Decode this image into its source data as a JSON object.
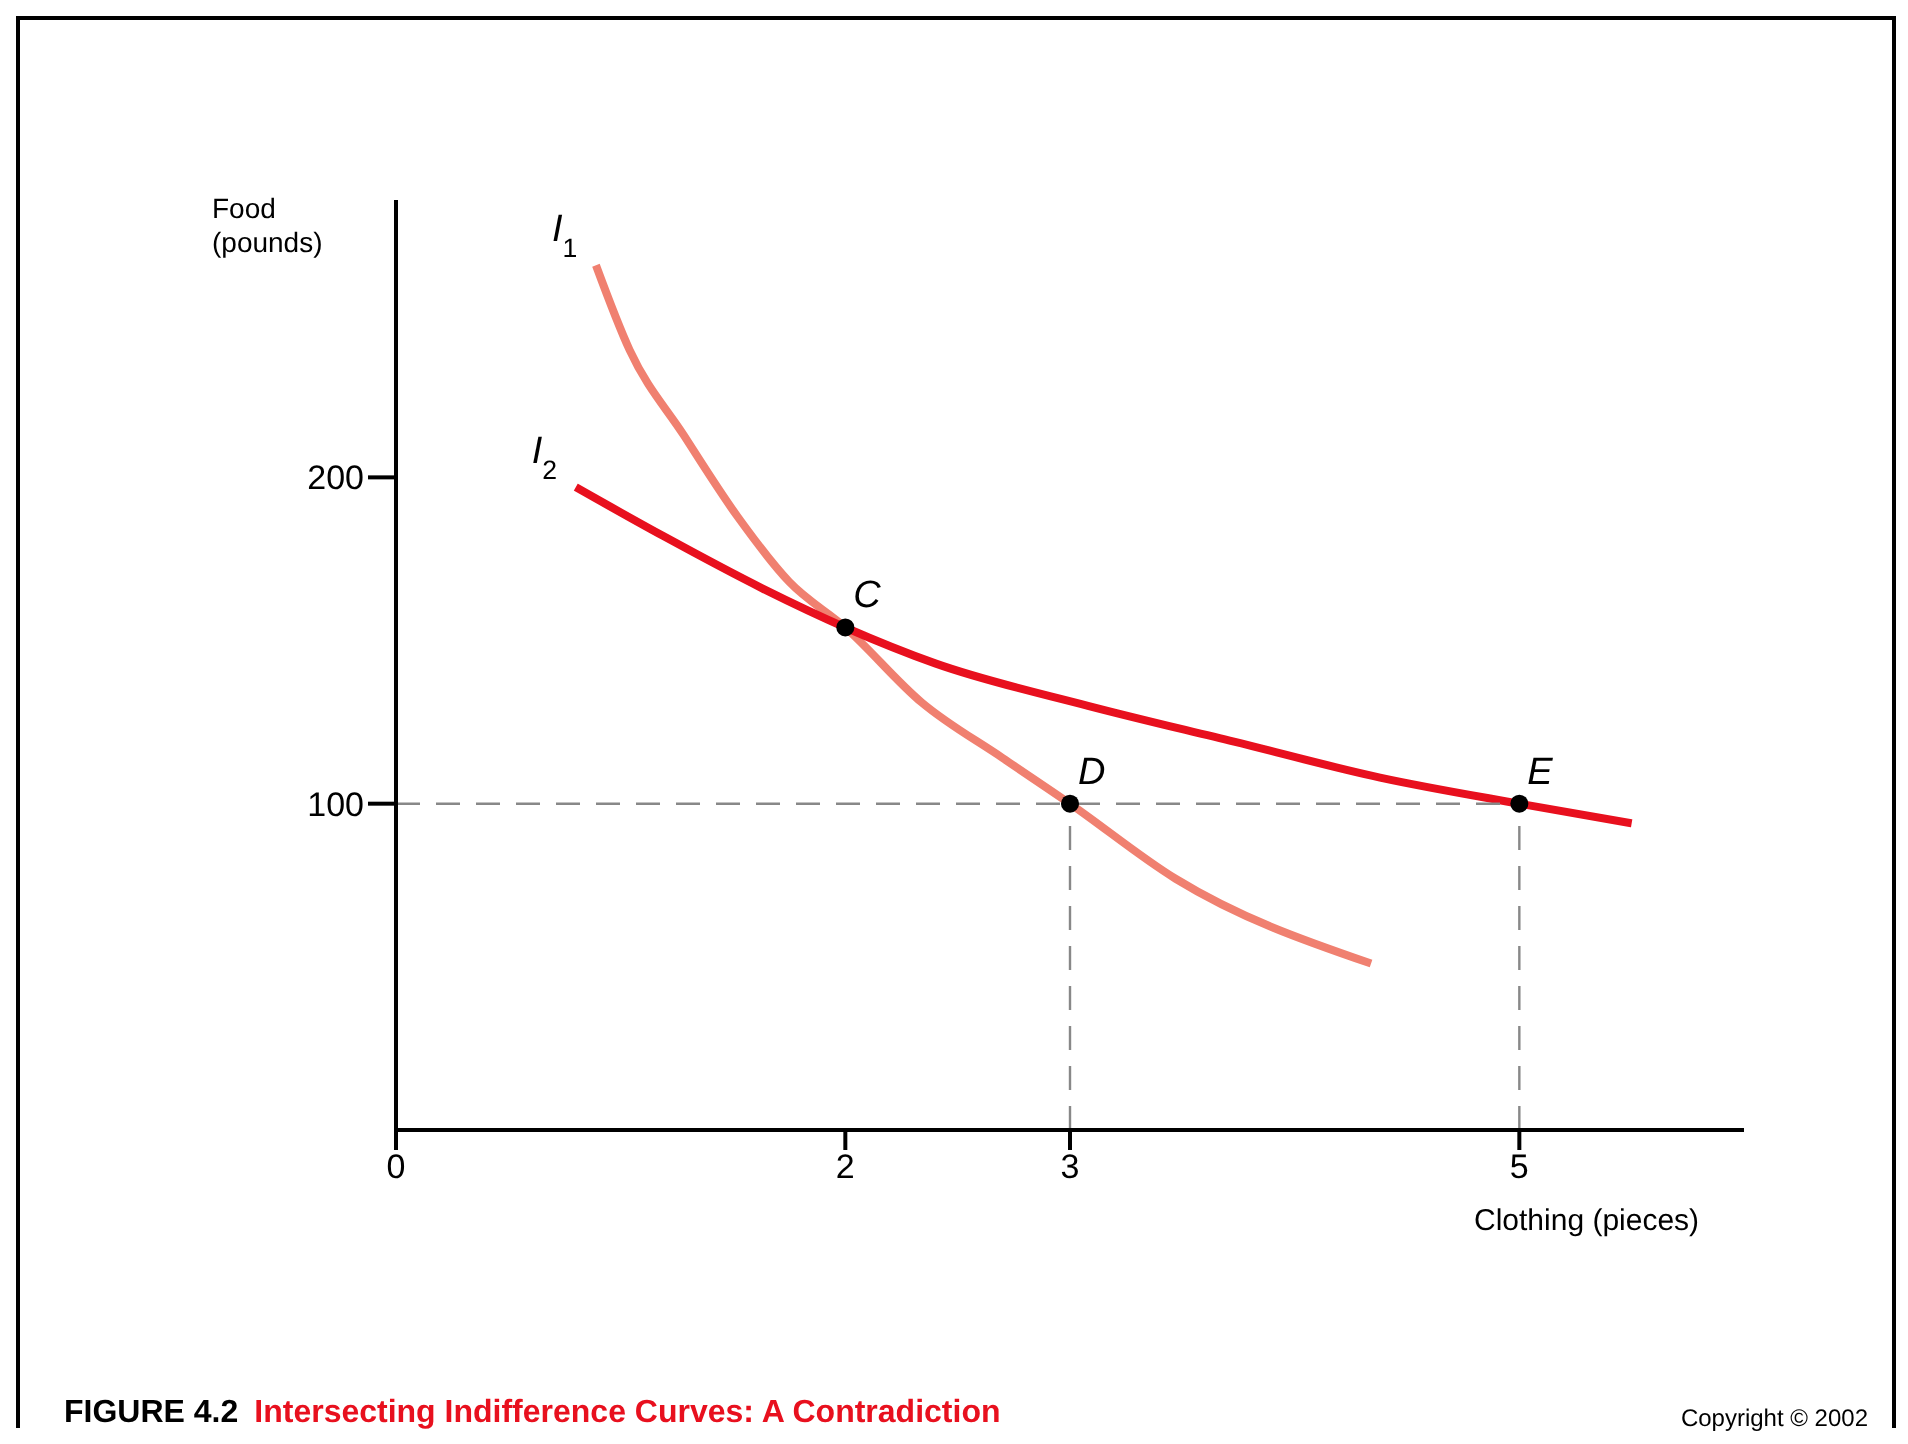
{
  "chart_data": {
    "type": "line",
    "title": "FIGURE 4.2",
    "subtitle": "Intersecting Indifference Curves: A Contradiction",
    "xlabel": "Clothing (pieces)",
    "ylabel": "Food\n(pounds)",
    "xlim": [
      0,
      6
    ],
    "xticks": [
      0,
      2,
      3,
      5
    ],
    "ylim": [
      0,
      285
    ],
    "yticks": [
      100,
      200
    ],
    "series": [
      {
        "name": "I$_{1}$",
        "color": "#f08070",
        "x": [
          0.89,
          1.04,
          1.28,
          1.52,
          1.75,
          2,
          2.34,
          2.7,
          3,
          3.47,
          4.34
        ],
        "values": [
          265,
          239,
          213,
          188,
          168,
          154,
          131,
          114,
          100,
          77,
          51
        ]
      },
      {
        "name": "I$_{2}$",
        "color": "#e8101e",
        "x": [
          0.8,
          1.19,
          1.63,
          2,
          2.4,
          3.08,
          3.73,
          4.38,
          5,
          5.5
        ],
        "values": [
          197,
          182,
          166,
          154,
          143,
          130,
          119,
          108,
          100,
          94
        ]
      },
      {
        "color": "#888888",
        "line_style": "dashed",
        "x": [
          0,
          5
        ],
        "values": [
          100,
          100
        ]
      },
      {
        "color": "#888888",
        "line_style": "dashed",
        "x": [
          3,
          3
        ],
        "values": [
          0,
          100
        ]
      },
      {
        "color": "#888888",
        "line_style": "dashed",
        "x": [
          5,
          5
        ],
        "values": [
          0,
          100
        ]
      },
      {
        "type": "scatter",
        "marker": "circle",
        "color": "#000000",
        "x": [
          2,
          3,
          5
        ],
        "values": [
          154,
          100,
          100
        ]
      }
    ],
    "annotations": [
      {
        "text": "C",
        "x": 2,
        "y": 154
      },
      {
        "text": "D",
        "x": 3,
        "y": 100
      },
      {
        "text": "E",
        "x": 5,
        "y": 100
      },
      "Copyright © 2002"
    ]
  }
}
